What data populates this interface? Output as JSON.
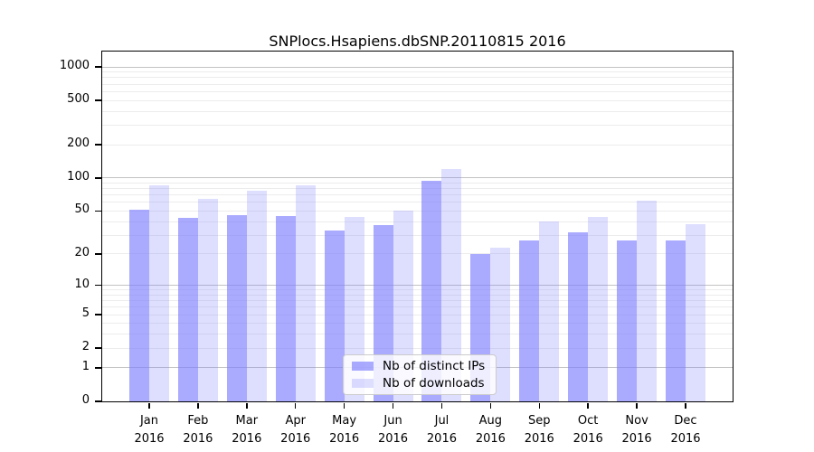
{
  "chart_data": {
    "type": "bar",
    "title": "SNPlocs.Hsapiens.dbSNP.20110815 2016",
    "categories": [
      "Jan",
      "Feb",
      "Mar",
      "Apr",
      "May",
      "Jun",
      "Jul",
      "Aug",
      "Sep",
      "Oct",
      "Nov",
      "Dec"
    ],
    "category_year": "2016",
    "series": [
      {
        "name": "Nb of distinct IPs",
        "fill": "rgba(125,125,255,0.65)",
        "values": [
          51,
          43,
          46,
          45,
          33,
          37,
          95,
          20,
          27,
          32,
          27,
          27
        ]
      },
      {
        "name": "Nb of downloads",
        "fill": "rgba(125,125,255,0.25)",
        "values": [
          85,
          65,
          76,
          85,
          44,
          50,
          120,
          23,
          40,
          44,
          62,
          38
        ]
      }
    ],
    "xlabel": "",
    "ylabel": "",
    "y_axis": {
      "scale": "log10(1+x) with 0 baseline",
      "ticks": [
        0,
        1,
        2,
        5,
        10,
        20,
        50,
        100,
        200,
        500,
        1000
      ],
      "range": [
        0,
        1100
      ]
    },
    "grid": "horizontal major (decades) + minor (log subdivisions)",
    "legend_position": "inside bottom-center",
    "colors": {
      "bar_base": "#7d7dff",
      "major_grid": "#c3c3c3",
      "minor_grid": "#ececec",
      "frame": "#000000"
    }
  }
}
